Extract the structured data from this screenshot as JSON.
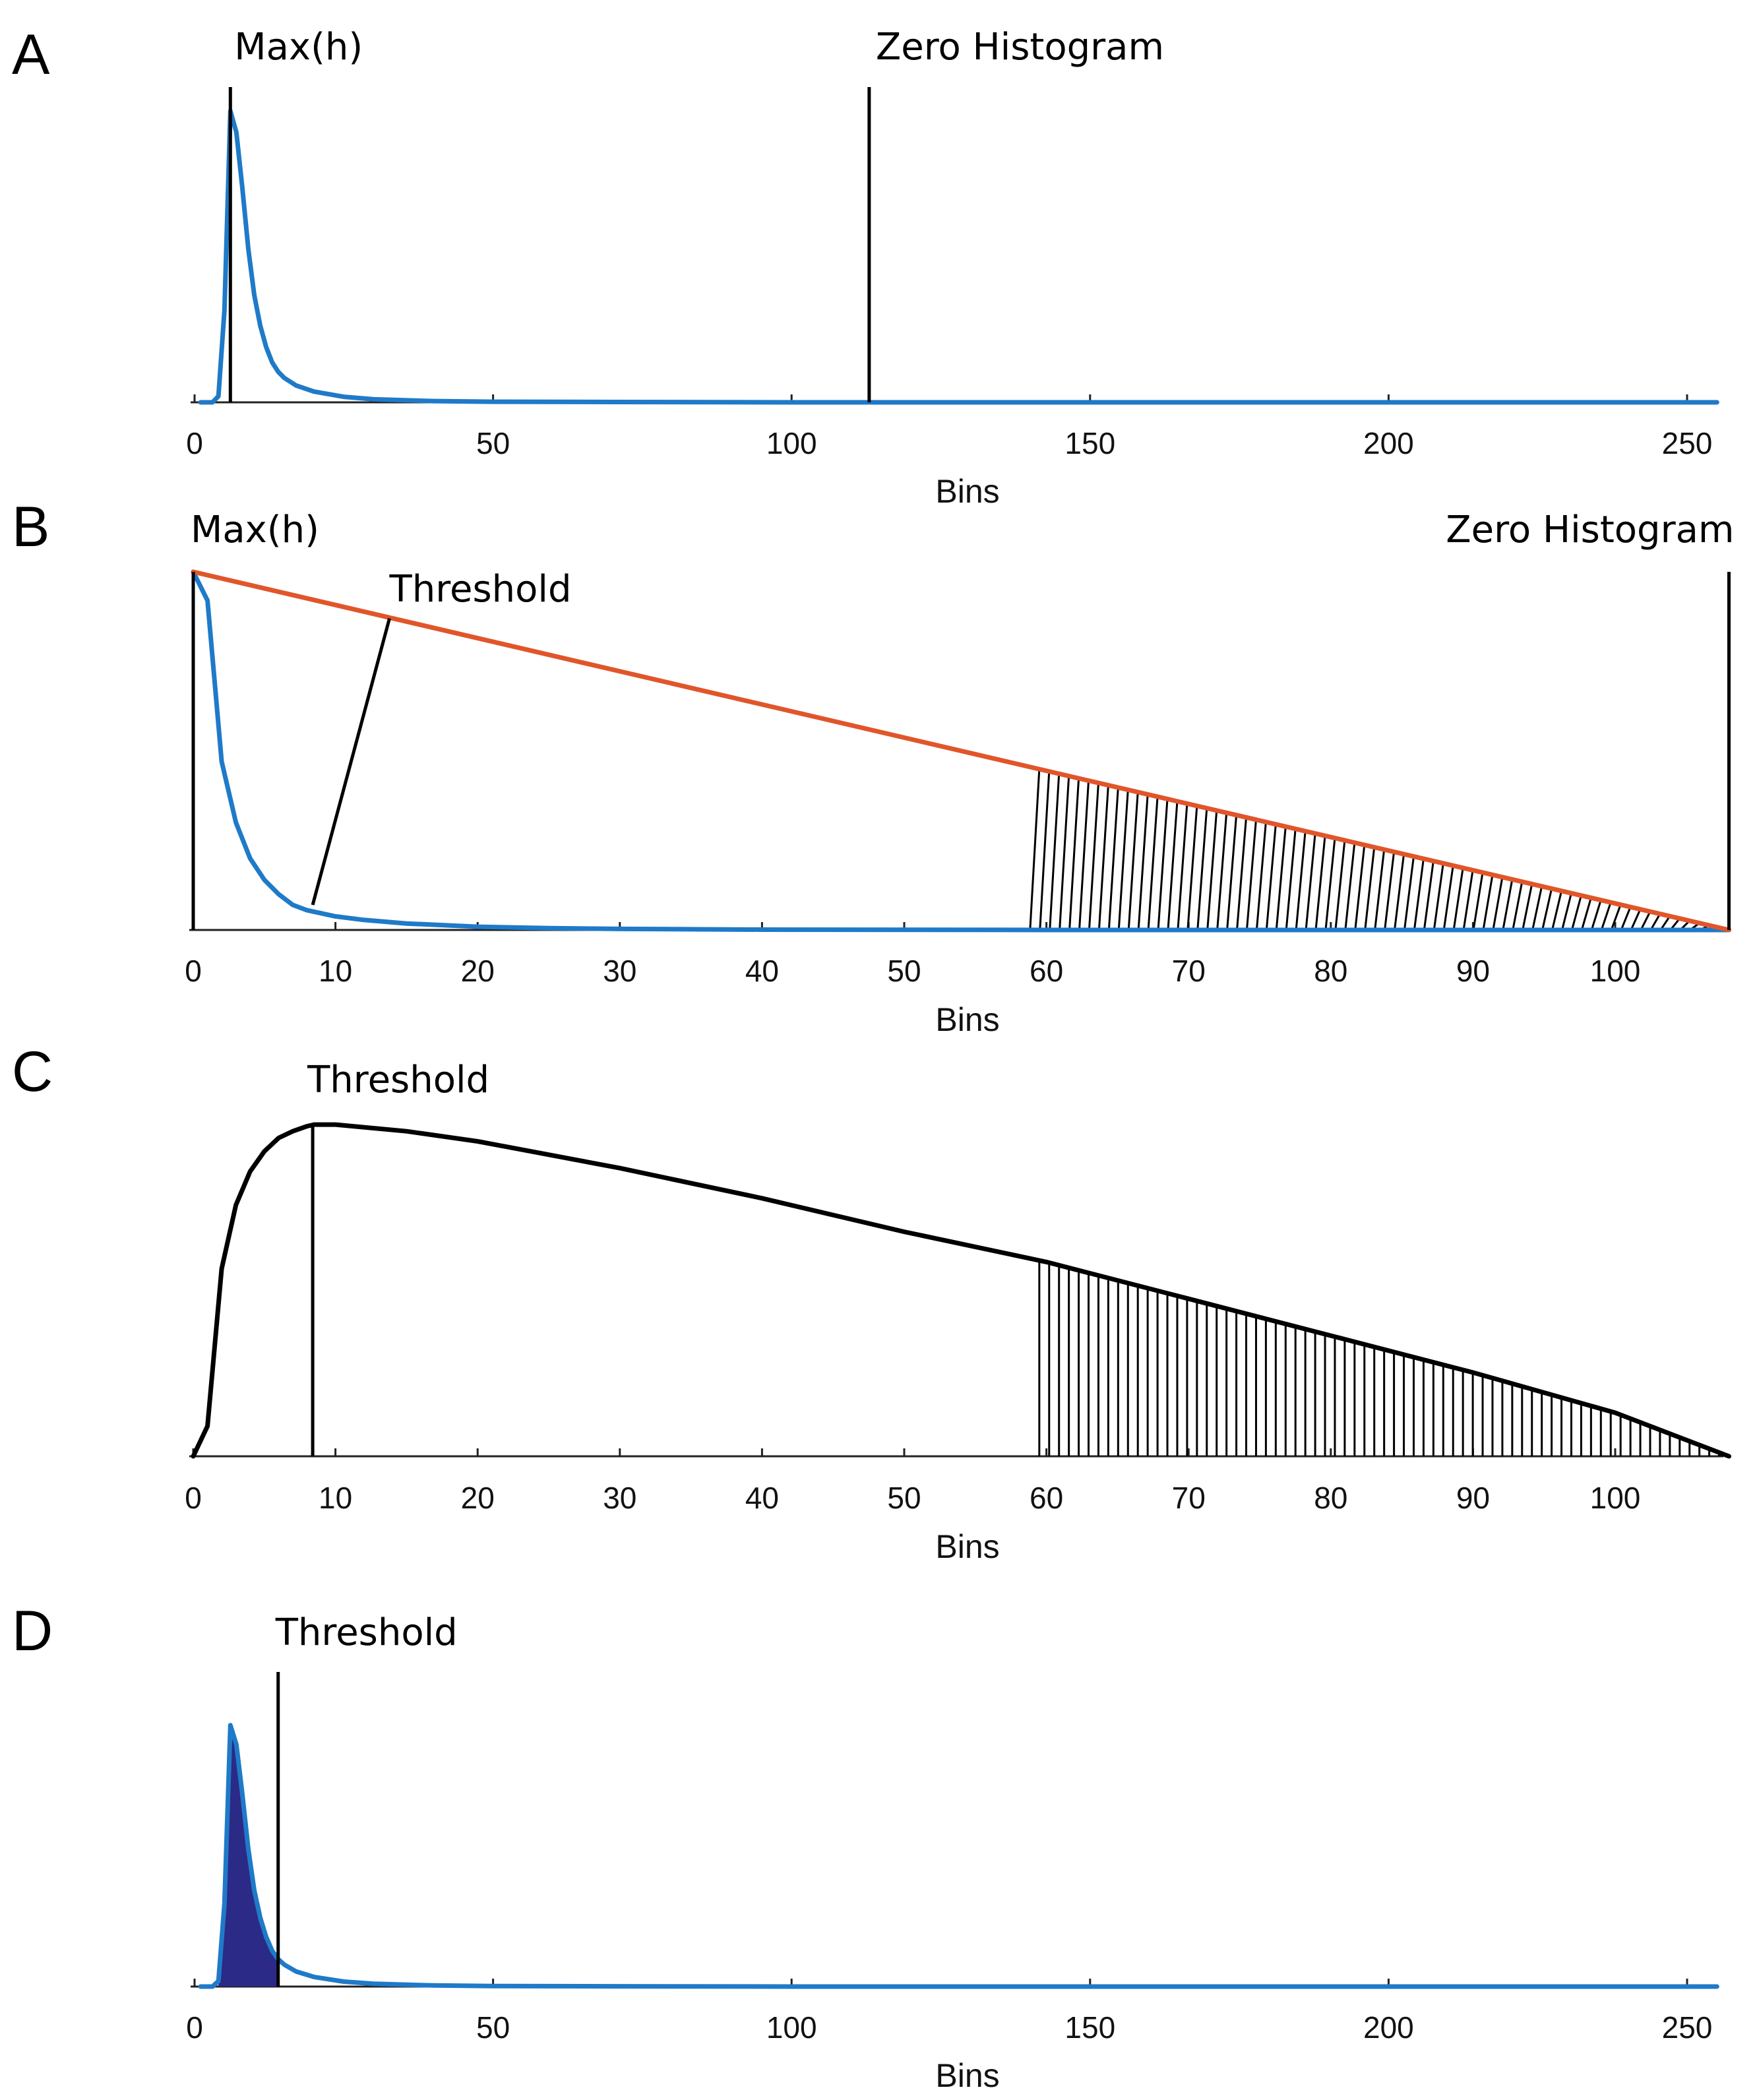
{
  "colors": {
    "series_blue": "#1f7ac8",
    "threshold_line_orange": "#e0562a",
    "fill_navy": "#2b2a86",
    "axis": "#222222",
    "vertical_line": "#000000",
    "hatch": "#000000"
  },
  "chart_data": [
    {
      "panel": "A",
      "type": "line",
      "xlabel": "Bins",
      "ylabel": "",
      "xlim": [
        0,
        255
      ],
      "ylim": [
        0,
        1
      ],
      "xticks": [
        0,
        50,
        100,
        150,
        200,
        250
      ],
      "grid": false,
      "series": [
        {
          "name": "histogram",
          "color": "blue",
          "points": [
            [
              1,
              0
            ],
            [
              2,
              0
            ],
            [
              3,
              0
            ],
            [
              4,
              0.02
            ],
            [
              5,
              0.3
            ],
            [
              6,
              0.95
            ],
            [
              7,
              0.88
            ],
            [
              8,
              0.7
            ],
            [
              9,
              0.5
            ],
            [
              10,
              0.35
            ],
            [
              11,
              0.25
            ],
            [
              12,
              0.18
            ],
            [
              13,
              0.13
            ],
            [
              14,
              0.1
            ],
            [
              15,
              0.08
            ],
            [
              17,
              0.055
            ],
            [
              20,
              0.035
            ],
            [
              25,
              0.018
            ],
            [
              30,
              0.01
            ],
            [
              40,
              0.004
            ],
            [
              50,
              0.002
            ],
            [
              70,
              0.001
            ],
            [
              100,
              0
            ],
            [
              150,
              0
            ],
            [
              200,
              0
            ],
            [
              255,
              0
            ]
          ]
        }
      ],
      "vlines": [
        {
          "x": 6,
          "label": "Max(h)"
        },
        {
          "x": 113,
          "label": "Zero Histogram"
        }
      ]
    },
    {
      "panel": "B",
      "type": "line",
      "xlabel": "Bins",
      "ylabel": "",
      "xlim": [
        0,
        108
      ],
      "ylim": [
        0,
        1
      ],
      "xticks": [
        0,
        10,
        20,
        30,
        40,
        50,
        60,
        70,
        80,
        90,
        100
      ],
      "grid": false,
      "series": [
        {
          "name": "histogram",
          "color": "blue",
          "points": [
            [
              0,
              1
            ],
            [
              1,
              0.92
            ],
            [
              2,
              0.47
            ],
            [
              3,
              0.3
            ],
            [
              4,
              0.2
            ],
            [
              5,
              0.14
            ],
            [
              6,
              0.1
            ],
            [
              7,
              0.07
            ],
            [
              8,
              0.055
            ],
            [
              10,
              0.038
            ],
            [
              12,
              0.028
            ],
            [
              15,
              0.018
            ],
            [
              20,
              0.009
            ],
            [
              25,
              0.005
            ],
            [
              30,
              0.003
            ],
            [
              40,
              0.001
            ],
            [
              60,
              0
            ],
            [
              108,
              0
            ]
          ]
        },
        {
          "name": "line from max to zero",
          "color": "orange",
          "points": [
            [
              0,
              1
            ],
            [
              108,
              0
            ]
          ]
        }
      ],
      "vlines": [
        {
          "x": 0,
          "label": "Max(h)"
        },
        {
          "x": 108,
          "label": "Zero Histogram"
        }
      ],
      "perpendicular": {
        "from": [
          8.4,
          0.07
        ],
        "to": [
          13.8,
          0.87
        ],
        "label": "Threshold"
      },
      "hatch_region": {
        "x_start": 59.5,
        "x_end": 108
      }
    },
    {
      "panel": "C",
      "type": "line",
      "xlabel": "Bins",
      "ylabel": "",
      "xlim": [
        0,
        108
      ],
      "ylim": [
        0,
        1
      ],
      "xticks": [
        0,
        10,
        20,
        30,
        40,
        50,
        60,
        70,
        80,
        90,
        100
      ],
      "grid": false,
      "series": [
        {
          "name": "distance to line",
          "color": "black",
          "points": [
            [
              0,
              0
            ],
            [
              1,
              0.09
            ],
            [
              2,
              0.56
            ],
            [
              3,
              0.75
            ],
            [
              4,
              0.85
            ],
            [
              5,
              0.91
            ],
            [
              6,
              0.95
            ],
            [
              7,
              0.97
            ],
            [
              8,
              0.985
            ],
            [
              8.5,
              0.99
            ],
            [
              10,
              0.99
            ],
            [
              15,
              0.97
            ],
            [
              20,
              0.94
            ],
            [
              30,
              0.86
            ],
            [
              40,
              0.77
            ],
            [
              50,
              0.67
            ],
            [
              60,
              0.58
            ],
            [
              70,
              0.47
            ],
            [
              80,
              0.36
            ],
            [
              90,
              0.25
            ],
            [
              100,
              0.13
            ],
            [
              108,
              0
            ]
          ]
        }
      ],
      "vlines": [
        {
          "x": 8.4,
          "label": "Threshold"
        }
      ],
      "hatch_region": {
        "x_start": 59.5,
        "x_end": 108
      }
    },
    {
      "panel": "D",
      "type": "area",
      "xlabel": "Bins",
      "ylabel": "",
      "xlim": [
        0,
        255
      ],
      "ylim": [
        0,
        1
      ],
      "xticks": [
        0,
        50,
        100,
        150,
        200,
        250
      ],
      "grid": false,
      "series": [
        {
          "name": "histogram",
          "color": "blue",
          "points": [
            [
              1,
              0
            ],
            [
              2,
              0
            ],
            [
              3,
              0
            ],
            [
              4,
              0.02
            ],
            [
              5,
              0.3
            ],
            [
              6,
              0.95
            ],
            [
              7,
              0.88
            ],
            [
              8,
              0.7
            ],
            [
              9,
              0.5
            ],
            [
              10,
              0.35
            ],
            [
              11,
              0.25
            ],
            [
              12,
              0.18
            ],
            [
              13,
              0.13
            ],
            [
              14,
              0.1
            ],
            [
              15,
              0.08
            ],
            [
              17,
              0.055
            ],
            [
              20,
              0.035
            ],
            [
              25,
              0.018
            ],
            [
              30,
              0.01
            ],
            [
              40,
              0.004
            ],
            [
              50,
              0.002
            ],
            [
              70,
              0.001
            ],
            [
              100,
              0
            ],
            [
              150,
              0
            ],
            [
              200,
              0
            ],
            [
              255,
              0
            ]
          ]
        }
      ],
      "fill_region": {
        "x_start": 4,
        "x_end": 14,
        "color": "navy"
      },
      "vlines": [
        {
          "x": 14,
          "label": "Threshold"
        }
      ]
    }
  ]
}
